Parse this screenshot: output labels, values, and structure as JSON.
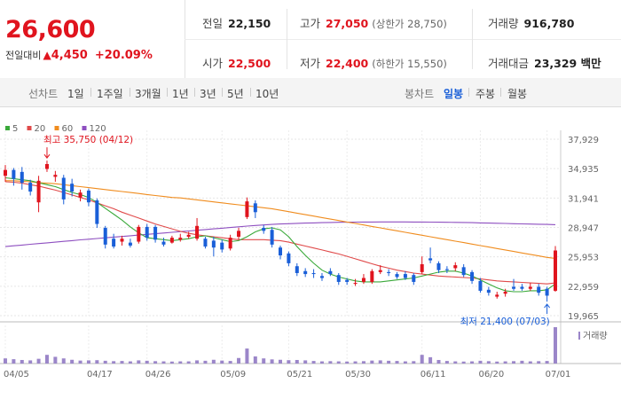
{
  "price_box": {
    "price": "26,600",
    "change_label": "전일대비",
    "change_arrow": "▲",
    "change_amount": "4,450",
    "change_percent": "+20.09%"
  },
  "stats": {
    "prev_close": {
      "label": "전일",
      "value": "22,150"
    },
    "high": {
      "label": "고가",
      "value": "27,050",
      "sub": "(상한가 28,750)"
    },
    "volume": {
      "label": "거래량",
      "value": "916,780"
    },
    "open": {
      "label": "시가",
      "value": "22,500"
    },
    "low": {
      "label": "저가",
      "value": "22,400",
      "sub": "(하한가 15,550)"
    },
    "trade_amount": {
      "label": "거래대금",
      "value": "23,329 백만"
    }
  },
  "periods": {
    "line_title": "선차트",
    "line_items": [
      "1일",
      "1주일",
      "3개월",
      "1년",
      "3년",
      "5년",
      "10년"
    ],
    "candle_title": "봉차트",
    "candle_items": [
      "일봉",
      "주봉",
      "월봉"
    ],
    "active": "일봉"
  },
  "colors": {
    "up": "#e0141e",
    "down": "#1a5fd8",
    "ma5": "#3aa93a",
    "ma20": "#e04a4a",
    "ma60": "#f08c1e",
    "ma120": "#8e4fc0",
    "volume": "#9b86c9"
  },
  "chart_data": {
    "type": "candlestick",
    "legend": [
      {
        "name": "5",
        "color": "#3aa93a"
      },
      {
        "name": "20",
        "color": "#e04a4a"
      },
      {
        "name": "60",
        "color": "#f08c1e"
      },
      {
        "name": "120",
        "color": "#8e4fc0"
      }
    ],
    "y_ticks": [
      "37,929",
      "34,935",
      "31,941",
      "28,947",
      "25,953",
      "22,959",
      "19,965"
    ],
    "ylim": [
      19965,
      37929
    ],
    "x_ticks": [
      "04/05",
      "04/17",
      "04/26",
      "05/09",
      "05/21",
      "05/30",
      "06/11",
      "06/20",
      "07/01"
    ],
    "annotations": {
      "high": "최고 35,750 (04/12)",
      "low": "최저 21,400 (07/03)"
    },
    "volume_label": "거래량",
    "candles": [
      {
        "o": 34200,
        "c": 34800,
        "h": 35300,
        "l": 33600
      },
      {
        "o": 34800,
        "c": 33900,
        "h": 35000,
        "l": 33200
      },
      {
        "o": 34600,
        "c": 33500,
        "h": 35100,
        "l": 32800
      },
      {
        "o": 33500,
        "c": 32600,
        "h": 33800,
        "l": 32200
      },
      {
        "o": 31500,
        "c": 33700,
        "h": 34200,
        "l": 30500
      },
      {
        "o": 34900,
        "c": 35400,
        "h": 35750,
        "l": 34600
      },
      {
        "o": 34100,
        "c": 34300,
        "h": 34700,
        "l": 33600
      },
      {
        "o": 34000,
        "c": 31800,
        "h": 34300,
        "l": 31300
      },
      {
        "o": 33400,
        "c": 32600,
        "h": 33900,
        "l": 32100
      },
      {
        "o": 32000,
        "c": 32500,
        "h": 32800,
        "l": 31600
      },
      {
        "o": 32700,
        "c": 31500,
        "h": 32900,
        "l": 31100
      },
      {
        "o": 31700,
        "c": 29300,
        "h": 31900,
        "l": 28900
      },
      {
        "o": 28900,
        "c": 27200,
        "h": 29100,
        "l": 26800
      },
      {
        "o": 27800,
        "c": 27000,
        "h": 28300,
        "l": 26800
      },
      {
        "o": 27500,
        "c": 27800,
        "h": 28100,
        "l": 27100
      },
      {
        "o": 27400,
        "c": 27100,
        "h": 27800,
        "l": 26900
      },
      {
        "o": 27500,
        "c": 29000,
        "h": 29200,
        "l": 27300
      },
      {
        "o": 29000,
        "c": 27900,
        "h": 29300,
        "l": 27600
      },
      {
        "o": 29000,
        "c": 27700,
        "h": 29200,
        "l": 27400
      },
      {
        "o": 27500,
        "c": 27200,
        "h": 27900,
        "l": 27000
      },
      {
        "o": 27400,
        "c": 27900,
        "h": 28100,
        "l": 27300
      },
      {
        "o": 27700,
        "c": 27900,
        "h": 28300,
        "l": 27500
      },
      {
        "o": 28000,
        "c": 28200,
        "h": 28500,
        "l": 27800
      },
      {
        "o": 27800,
        "c": 29100,
        "h": 29900,
        "l": 27600
      },
      {
        "o": 27800,
        "c": 27000,
        "h": 28000,
        "l": 26800
      },
      {
        "o": 27600,
        "c": 26900,
        "h": 28000,
        "l": 26000
      },
      {
        "o": 27400,
        "c": 26700,
        "h": 27700,
        "l": 26400
      },
      {
        "o": 26800,
        "c": 27900,
        "h": 28200,
        "l": 26600
      },
      {
        "o": 28000,
        "c": 28600,
        "h": 28900,
        "l": 27700
      },
      {
        "o": 30000,
        "c": 31600,
        "h": 32000,
        "l": 29800
      },
      {
        "o": 31400,
        "c": 30500,
        "h": 31700,
        "l": 29900
      },
      {
        "o": 28900,
        "c": 28600,
        "h": 29200,
        "l": 28300
      },
      {
        "o": 28700,
        "c": 27200,
        "h": 29000,
        "l": 26900
      },
      {
        "o": 26900,
        "c": 26100,
        "h": 27100,
        "l": 25700
      },
      {
        "o": 26300,
        "c": 25300,
        "h": 26500,
        "l": 25000
      },
      {
        "o": 25000,
        "c": 24300,
        "h": 25300,
        "l": 24000
      },
      {
        "o": 24500,
        "c": 24200,
        "h": 24800,
        "l": 23900
      },
      {
        "o": 24300,
        "c": 24200,
        "h": 24700,
        "l": 23800
      },
      {
        "o": 24000,
        "c": 23800,
        "h": 24300,
        "l": 23500
      },
      {
        "o": 24500,
        "c": 24200,
        "h": 24800,
        "l": 24000
      },
      {
        "o": 24100,
        "c": 23400,
        "h": 24300,
        "l": 23100
      },
      {
        "o": 23600,
        "c": 23400,
        "h": 23800,
        "l": 23100
      },
      {
        "o": 23200,
        "c": 23300,
        "h": 23700,
        "l": 23000
      },
      {
        "o": 23400,
        "c": 23800,
        "h": 24200,
        "l": 23200
      },
      {
        "o": 23400,
        "c": 24500,
        "h": 24700,
        "l": 23200
      },
      {
        "o": 24400,
        "c": 24600,
        "h": 25100,
        "l": 24200
      },
      {
        "o": 24400,
        "c": 24300,
        "h": 24700,
        "l": 24000
      },
      {
        "o": 24200,
        "c": 23900,
        "h": 24400,
        "l": 23700
      },
      {
        "o": 24200,
        "c": 23800,
        "h": 24500,
        "l": 23600
      },
      {
        "o": 24100,
        "c": 23400,
        "h": 24300,
        "l": 23100
      },
      {
        "o": 24400,
        "c": 25200,
        "h": 26000,
        "l": 24200
      },
      {
        "o": 25800,
        "c": 25600,
        "h": 26900,
        "l": 25300
      },
      {
        "o": 25300,
        "c": 24600,
        "h": 25500,
        "l": 24300
      },
      {
        "o": 24700,
        "c": 24600,
        "h": 25000,
        "l": 24300
      },
      {
        "o": 24800,
        "c": 25100,
        "h": 25400,
        "l": 24500
      },
      {
        "o": 24900,
        "c": 24100,
        "h": 25200,
        "l": 23900
      },
      {
        "o": 24400,
        "c": 23500,
        "h": 24600,
        "l": 23200
      },
      {
        "o": 23500,
        "c": 22500,
        "h": 23800,
        "l": 22300
      },
      {
        "o": 22600,
        "c": 22300,
        "h": 22900,
        "l": 22000
      },
      {
        "o": 21900,
        "c": 22100,
        "h": 22400,
        "l": 21700
      },
      {
        "o": 22200,
        "c": 22400,
        "h": 22700,
        "l": 21900
      },
      {
        "o": 22900,
        "c": 22700,
        "h": 23700,
        "l": 22500
      },
      {
        "o": 22900,
        "c": 22700,
        "h": 23200,
        "l": 22500
      },
      {
        "o": 22700,
        "c": 22900,
        "h": 23300,
        "l": 22500
      },
      {
        "o": 22900,
        "c": 22300,
        "h": 23200,
        "l": 22000
      },
      {
        "o": 22700,
        "c": 22000,
        "h": 22900,
        "l": 21400
      },
      {
        "o": 22500,
        "c": 26600,
        "h": 27050,
        "l": 22400
      }
    ],
    "volumes": [
      130,
      110,
      90,
      80,
      120,
      220,
      170,
      130,
      95,
      75,
      80,
      85,
      70,
      60,
      65,
      55,
      80,
      70,
      60,
      55,
      50,
      55,
      55,
      80,
      70,
      95,
      75,
      65,
      140,
      380,
      180,
      130,
      105,
      95,
      85,
      90,
      80,
      65,
      55,
      60,
      55,
      50,
      55,
      60,
      75,
      80,
      70,
      65,
      55,
      60,
      220,
      160,
      90,
      65,
      55,
      50,
      55,
      70,
      60,
      50,
      55,
      60,
      70,
      55,
      60,
      65,
      920
    ],
    "ma5": [
      34000,
      33900,
      33800,
      33700,
      33500,
      33300,
      33100,
      32800,
      32500,
      32300,
      32000,
      31500,
      30900,
      30300,
      29700,
      29000,
      28400,
      27900,
      27800,
      27700,
      27600,
      27700,
      27800,
      28000,
      28100,
      27900,
      27700,
      27500,
      27600,
      28000,
      28500,
      28800,
      28900,
      28700,
      28000,
      27000,
      26100,
      25300,
      24600,
      24200,
      23900,
      23700,
      23500,
      23400,
      23400,
      23400,
      23500,
      23600,
      23700,
      23800,
      24000,
      24200,
      24400,
      24500,
      24500,
      24300,
      24000,
      23600,
      23200,
      22800,
      22500,
      22400,
      22400,
      22500,
      22500,
      22600,
      23200
    ],
    "ma20": [
      33600,
      33550,
      33450,
      33300,
      33150,
      32950,
      32750,
      32500,
      32250,
      32000,
      31750,
      31450,
      31150,
      30850,
      30500,
      30200,
      29900,
      29600,
      29300,
      29050,
      28800,
      28550,
      28350,
      28200,
      28100,
      28000,
      27900,
      27800,
      27700,
      27700,
      27700,
      27700,
      27650,
      27600,
      27450,
      27250,
      27050,
      26850,
      26650,
      26450,
      26250,
      26000,
      25750,
      25500,
      25250,
      25000,
      24800,
      24600,
      24450,
      24300,
      24200,
      24100,
      24000,
      23950,
      23900,
      23850,
      23800,
      23700,
      23600,
      23500,
      23450,
      23400,
      23350,
      23300,
      23250,
      23200,
      23300
    ],
    "ma60": [
      33700,
      33700,
      33650,
      33600,
      33500,
      33450,
      33400,
      33300,
      33200,
      33100,
      33000,
      32900,
      32800,
      32700,
      32600,
      32500,
      32400,
      32300,
      32200,
      32100,
      32000,
      31950,
      31850,
      31750,
      31650,
      31550,
      31450,
      31350,
      31250,
      31150,
      31050,
      30950,
      30850,
      30700,
      30550,
      30400,
      30250,
      30100,
      29950,
      29800,
      29650,
      29500,
      29350,
      29200,
      29050,
      28900,
      28750,
      28600,
      28450,
      28300,
      28150,
      28000,
      27850,
      27700,
      27550,
      27400,
      27250,
      27100,
      26950,
      26800,
      26650,
      26500,
      26350,
      26200,
      26050,
      25900,
      25800
    ],
    "ma120": [
      27000,
      27080,
      27150,
      27230,
      27300,
      27380,
      27450,
      27530,
      27600,
      27680,
      27750,
      27820,
      27890,
      27960,
      28030,
      28100,
      28170,
      28240,
      28310,
      28380,
      28450,
      28520,
      28590,
      28660,
      28730,
      28800,
      28870,
      28940,
      29010,
      29080,
      29150,
      29200,
      29250,
      29300,
      29330,
      29360,
      29390,
      29410,
      29430,
      29450,
      29470,
      29480,
      29490,
      29500,
      29500,
      29510,
      29510,
      29510,
      29510,
      29500,
      29500,
      29490,
      29480,
      29470,
      29460,
      29450,
      29430,
      29410,
      29390,
      29370,
      29350,
      29330,
      29310,
      29290,
      29270,
      29250,
      29230
    ]
  }
}
